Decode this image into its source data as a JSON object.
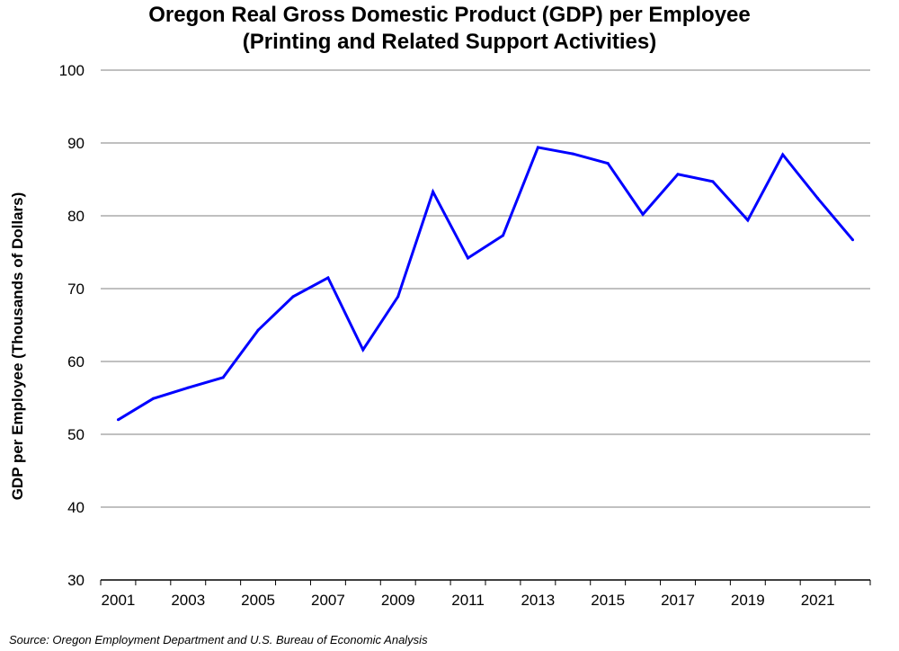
{
  "chart_data": {
    "type": "line",
    "title": [
      "Oregon Real Gross Domestic Product (GDP) per Employee",
      "(Printing and Related Support Activities)"
    ],
    "xlabel": "",
    "ylabel": "GDP per Employee (Thousands of Dollars)",
    "ylim": [
      30,
      100
    ],
    "yticks": [
      "30",
      "40",
      "50",
      "60",
      "70",
      "80",
      "90",
      "100"
    ],
    "x": [
      2001,
      2002,
      2003,
      2004,
      2005,
      2006,
      2007,
      2008,
      2009,
      2010,
      2011,
      2012,
      2013,
      2014,
      2015,
      2016,
      2017,
      2018,
      2019,
      2020,
      2021,
      2022
    ],
    "xtick_labels": [
      "2001",
      "2003",
      "2005",
      "2007",
      "2009",
      "2011",
      "2013",
      "2015",
      "2017",
      "2019",
      "2021"
    ],
    "grid": true,
    "series": [
      {
        "name": "GDP per Employee",
        "color": "#0000ff",
        "values": [
          52.0,
          54.9,
          56.4,
          57.8,
          64.3,
          68.9,
          71.5,
          61.6,
          68.9,
          83.3,
          74.2,
          77.3,
          89.4,
          88.5,
          87.2,
          80.2,
          85.7,
          84.7,
          79.4,
          88.4,
          82.4,
          76.7
        ]
      }
    ],
    "source": "Source: Oregon Employment Department and U.S. Bureau of Economic Analysis"
  }
}
